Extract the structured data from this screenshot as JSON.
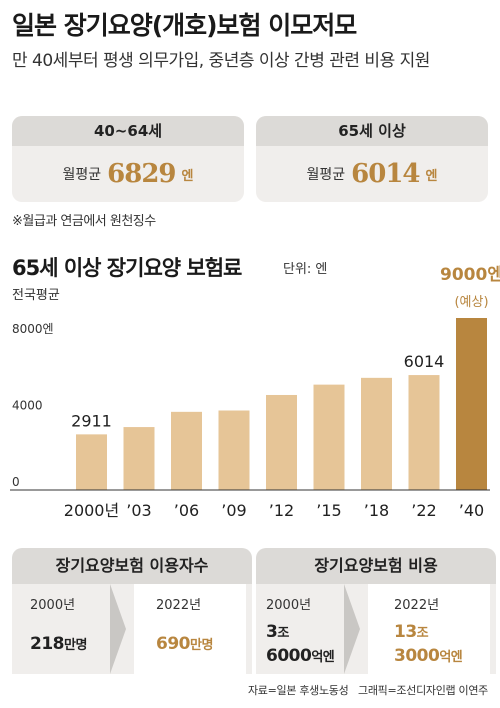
{
  "header": {
    "title": "일본 장기요양(개호)보험 이모저모",
    "subtitle": "만 40세부터 평생 의무가입, 중년층 이상 간병 관련 비용 지원"
  },
  "premium_cards": [
    {
      "group": "40~64세",
      "label": "월평균",
      "amount": "6829",
      "unit": "엔"
    },
    {
      "group": "65세 이상",
      "label": "월평균",
      "amount": "6014",
      "unit": "엔"
    }
  ],
  "note": "※월급과 연금에서 원천징수",
  "chart_header": {
    "title": "65세 이상 장기요양 보험료",
    "unit": "단위: 엔",
    "subtitle": "전국평균"
  },
  "chart_data": {
    "type": "bar",
    "title": "65세 이상 장기요양 보험료",
    "ylabel": "",
    "xlabel": "",
    "ylim": [
      0,
      9000
    ],
    "yticks": [
      "0",
      "4000",
      "8000엔"
    ],
    "categories": [
      "2000년",
      "’03",
      "’06",
      "’09",
      "’12",
      "’15",
      "’18",
      "’22",
      "’40"
    ],
    "values": [
      2911,
      3293,
      4090,
      4160,
      4972,
      5514,
      5869,
      6014,
      9000
    ],
    "data_labels": [
      "2911",
      "",
      "",
      "",
      "",
      "",
      "",
      "6014",
      "9000엔"
    ],
    "projected_note": "(예상)",
    "colors": {
      "bar": "#e6c597",
      "projected": "#b8863f"
    },
    "grid": false
  },
  "users_panel": {
    "title": "장기요양보험 이용자수",
    "from_year": "2000년",
    "from_value": "218",
    "from_unit": "만명",
    "to_year": "2022년",
    "to_value": "690",
    "to_unit": "만명"
  },
  "cost_panel": {
    "title": "장기요양보험 비용",
    "from_year": "2000년",
    "from_value_1": "3",
    "from_unit_1": "조",
    "from_value_2": "6000",
    "from_unit_2": "억엔",
    "to_year": "2022년",
    "to_value_1": "13",
    "to_unit_1": "조",
    "to_value_2": "3000",
    "to_unit_2": "억엔"
  },
  "footer": {
    "source": "자료=일본 후생노동성",
    "credit": "그래픽=조선디자인랩 이연주"
  }
}
